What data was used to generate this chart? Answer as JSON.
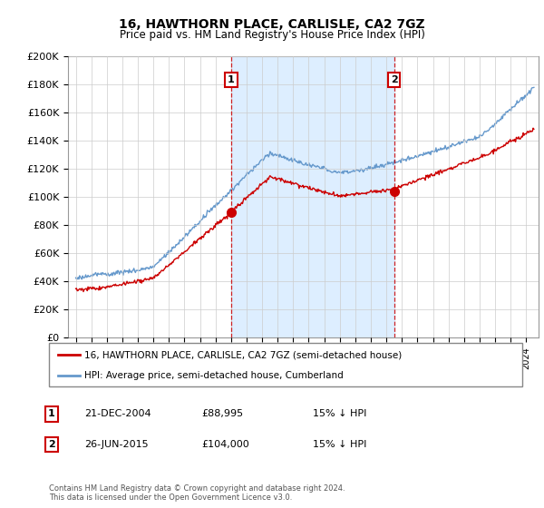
{
  "title": "16, HAWTHORN PLACE, CARLISLE, CA2 7GZ",
  "subtitle": "Price paid vs. HM Land Registry's House Price Index (HPI)",
  "hpi_color": "#6699cc",
  "price_color": "#cc0000",
  "marker_color": "#cc0000",
  "background_color": "#ffffff",
  "grid_color": "#cccccc",
  "annotation_box_color": "#cc0000",
  "vline_color": "#cc0000",
  "shade_color": "#ddeeff",
  "point1": {
    "label": "1",
    "date_str": "21-DEC-2004",
    "price": 88995,
    "note": "15% ↓ HPI",
    "x_year": 2005.0
  },
  "point2": {
    "label": "2",
    "date_str": "26-JUN-2015",
    "price": 104000,
    "note": "15% ↓ HPI",
    "x_year": 2015.5
  },
  "legend_line1": "16, HAWTHORN PLACE, CARLISLE, CA2 7GZ (semi-detached house)",
  "legend_line2": "HPI: Average price, semi-detached house, Cumberland",
  "footer": "Contains HM Land Registry data © Crown copyright and database right 2024.\nThis data is licensed under the Open Government Licence v3.0.",
  "table_rows": [
    {
      "num": "1",
      "date": "21-DEC-2004",
      "price": "£88,995",
      "note": "15% ↓ HPI"
    },
    {
      "num": "2",
      "date": "26-JUN-2015",
      "price": "£104,000",
      "note": "15% ↓ HPI"
    }
  ],
  "ylim": [
    0,
    200000
  ],
  "yticks": [
    0,
    20000,
    40000,
    60000,
    80000,
    100000,
    120000,
    140000,
    160000,
    180000,
    200000
  ],
  "xlim_start": 1994.5,
  "xlim_end": 2024.8
}
